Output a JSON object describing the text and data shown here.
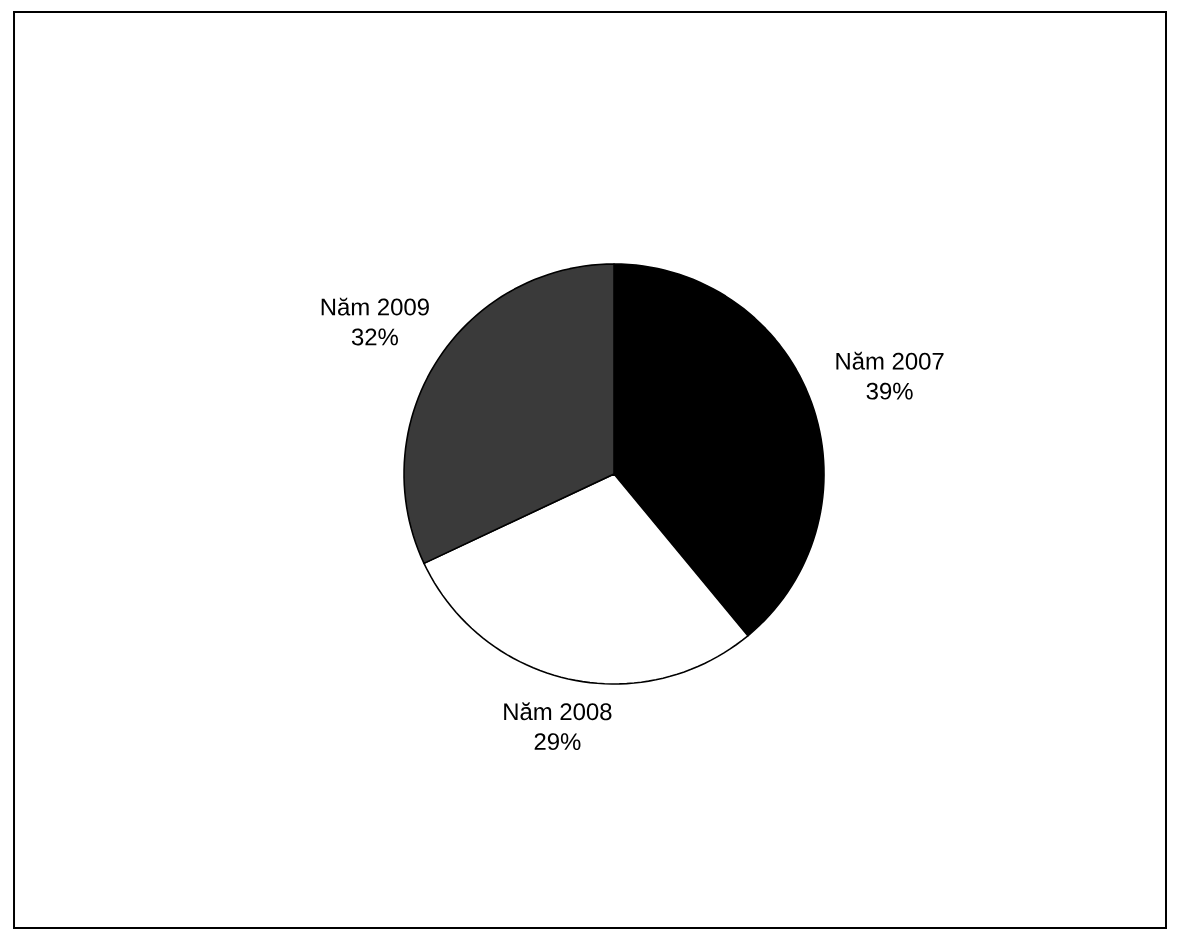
{
  "chart_data": {
    "type": "pie",
    "categories": [
      "Năm 2007",
      "Năm 2008",
      "Năm 2009"
    ],
    "values": [
      39,
      29,
      32
    ],
    "value_labels": [
      "39%",
      "29%",
      "32%"
    ],
    "colors": [
      "#000000",
      "#ffffff",
      "#3a3a3a"
    ]
  }
}
